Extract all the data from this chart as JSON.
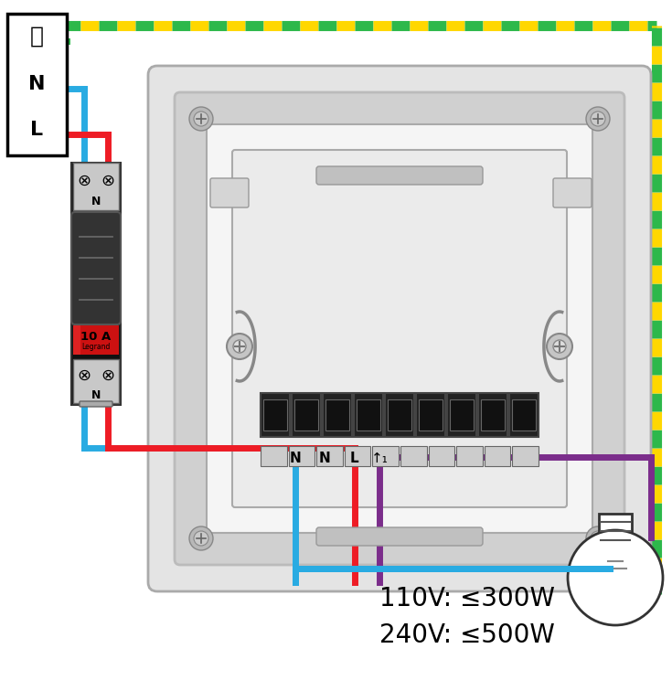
{
  "bg_color": "#ffffff",
  "green": "#2DB84B",
  "yellow": "#FFD700",
  "blue": "#29ABE2",
  "red": "#EE1C25",
  "purple": "#7B2D8B",
  "black": "#111111",
  "gray_outer": "#e0e0e0",
  "gray_mid": "#cccccc",
  "gray_inner": "#f0f0f0",
  "wire_lw": 5,
  "gy_lw": 8,
  "seg": 20,
  "title_line1": "110V: ≤300W",
  "title_line2": "240V: ≤500W",
  "breaker_label": "10 A",
  "breaker_brand": "Legrand",
  "fig_w": 7.35,
  "fig_h": 7.56
}
